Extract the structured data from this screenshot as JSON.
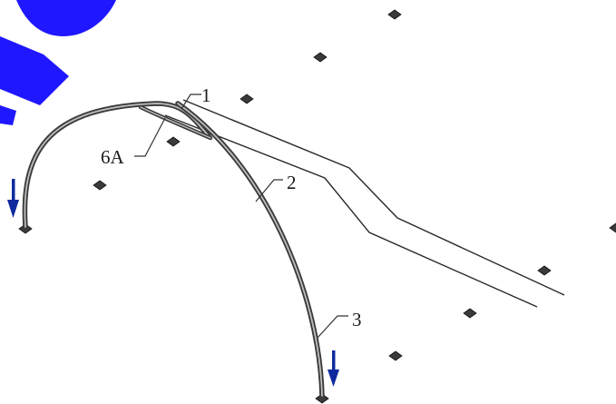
{
  "diagram": {
    "callouts": {
      "label_1": "1",
      "label_2": "2",
      "label_3": "3",
      "label_6a": "6A"
    },
    "colors": {
      "brand_shape": "#1f17ff",
      "arrow": "#0f2a9e",
      "line": "#2a2a2a",
      "pad": "#3a3a3a"
    },
    "icons": [
      "down-arrow-icon",
      "down-arrow-icon"
    ]
  }
}
